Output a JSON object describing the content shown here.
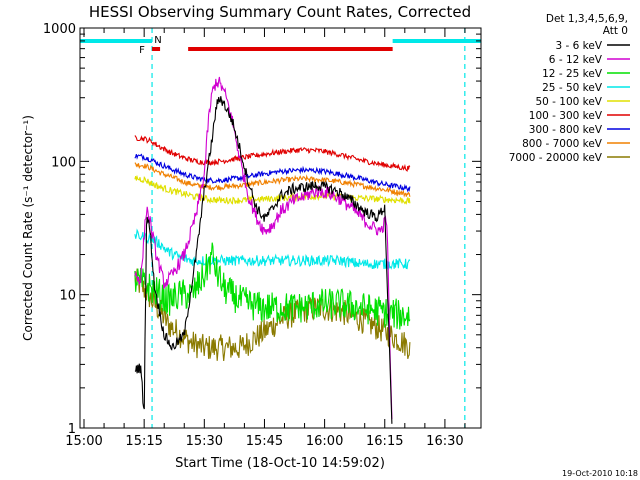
{
  "chart_data": {
    "type": "line",
    "title": "HESSI Observing Summary Count Rates, Corrected",
    "xlabel": "Start Time (18-Oct-10 14:59:02)",
    "ylabel": "Corrected Count Rate (s⁻¹ detector⁻¹)",
    "yscale": "log",
    "ylim": [
      1,
      1000
    ],
    "xlim": [
      "14:59:02",
      "16:39"
    ],
    "xticks": [
      "15:00",
      "15:15",
      "15:30",
      "15:45",
      "16:00",
      "16:15",
      "16:30"
    ],
    "xtick_minutes": [
      1,
      16,
      31,
      46,
      61,
      76,
      91
    ],
    "yticks": [
      "1",
      "10",
      "100",
      "1000"
    ],
    "yticks_values": [
      1,
      10,
      100,
      1000
    ],
    "legend_header": [
      "Det 1,3,4,5,6,9,",
      "Att 0"
    ],
    "legend_position": "right",
    "footer": "19-Oct-2010 10:18",
    "flags": {
      "daylight_segments": [
        [
          "14:59:02",
          "15:17"
        ],
        [
          "16:17",
          "16:39"
        ]
      ],
      "saa_flag": {
        "label": "N",
        "time": "15:17"
      },
      "flare_flag": {
        "label": "F",
        "time_range": [
          "15:17",
          "15:19"
        ]
      },
      "flare_bar_range": [
        "15:26",
        "16:17"
      ],
      "night_lines": [
        "15:17",
        "16:35"
      ]
    },
    "series": [
      {
        "name": "3 - 6 keV",
        "color": "#000000",
        "t": [
          13.7,
          15.2,
          16.0,
          16.6,
          17.5,
          18.5,
          20.0,
          21.0,
          23.0,
          26.0,
          29.0,
          31.0,
          33.0,
          34.0,
          35.0,
          36.5,
          38.0,
          40.0,
          42.0,
          44.0,
          46.0,
          48.0,
          50.0,
          53.0,
          56.0,
          59.0,
          62.0,
          65.0,
          68.0,
          71.0,
          74.0,
          76.0,
          77.8
        ],
        "y": [
          2.8,
          2.8,
          1.2,
          40,
          30,
          12,
          7,
          5,
          4,
          5,
          20,
          60,
          150,
          260,
          300,
          250,
          200,
          120,
          70,
          45,
          37,
          44,
          55,
          62,
          64,
          66,
          63,
          58,
          50,
          42,
          38,
          45,
          1
        ]
      },
      {
        "name": "6 - 12 keV",
        "color": "#d000d0",
        "t": [
          13.7,
          15.2,
          16.1,
          16.6,
          17.5,
          19.0,
          21.0,
          23.0,
          26.0,
          29.0,
          31.0,
          32.0,
          33.0,
          34.0,
          35.0,
          36.5,
          38.0,
          40.0,
          42.0,
          44.0,
          46.0,
          48.0,
          50.0,
          53.0,
          56.0,
          59.0,
          62.0,
          65.0,
          68.0,
          71.0,
          73.0,
          75.0,
          76.5,
          77.8
        ],
        "y": [
          14,
          13,
          30,
          45,
          35,
          20,
          12,
          14,
          20,
          40,
          80,
          200,
          330,
          400,
          380,
          300,
          200,
          100,
          55,
          38,
          30,
          33,
          42,
          50,
          55,
          60,
          58,
          52,
          44,
          36,
          32,
          30,
          38,
          1
        ]
      },
      {
        "name": "12 - 25 keV",
        "color": "#00e000",
        "t": [
          13.7,
          16.0,
          18.0,
          20.0,
          22.0,
          25.0,
          28.0,
          31.0,
          33.0,
          34.0,
          36.0,
          40.0,
          45.0,
          50.0,
          55.0,
          60.0,
          65.0,
          70.0,
          75.0,
          80.0,
          82.4
        ],
        "y": [
          13,
          12,
          11,
          10,
          9,
          10,
          10,
          14,
          20,
          15,
          11,
          9,
          8,
          8,
          8,
          8.5,
          8.5,
          8,
          7.5,
          7,
          7
        ]
      },
      {
        "name": "25 - 50 keV",
        "color": "#00e8e8",
        "t": [
          13.7,
          16.0,
          18.0,
          20.0,
          22.0,
          25.0,
          28.0,
          31.0,
          34.0,
          37.0,
          40.0,
          45.0,
          50.0,
          55.0,
          60.0,
          65.0,
          70.0,
          75.0,
          80.0,
          82.4
        ],
        "y": [
          28,
          27,
          26,
          24,
          21,
          19,
          18,
          18,
          18,
          18,
          18,
          18,
          18,
          18,
          18,
          18,
          17,
          17,
          17,
          17
        ]
      },
      {
        "name": "50 - 100 keV",
        "color": "#e0e000",
        "t": [
          13.7,
          16.0,
          18.0,
          20.0,
          23.0,
          26.0,
          29.0,
          32.0,
          35.0,
          40.0,
          45.0,
          50.0,
          55.0,
          60.0,
          65.0,
          70.0,
          75.0,
          80.0,
          82.4
        ],
        "y": [
          75,
          73,
          68,
          64,
          60,
          57,
          54,
          52,
          51,
          51,
          52,
          53,
          54,
          55,
          54,
          53,
          52,
          51,
          50
        ]
      },
      {
        "name": "100 - 300 keV",
        "color": "#e00000",
        "t": [
          13.7,
          16.0,
          18.0,
          20.0,
          23.0,
          26.0,
          29.0,
          32.0,
          35.0,
          40.0,
          45.0,
          50.0,
          55.0,
          60.0,
          65.0,
          70.0,
          75.0,
          80.0,
          82.4
        ],
        "y": [
          150,
          148,
          140,
          128,
          115,
          106,
          100,
          98,
          100,
          106,
          112,
          118,
          122,
          120,
          112,
          102,
          95,
          90,
          88
        ]
      },
      {
        "name": "300 - 800 keV",
        "color": "#0000e0",
        "t": [
          13.7,
          16.0,
          18.0,
          20.0,
          23.0,
          26.0,
          29.0,
          32.0,
          35.0,
          40.0,
          45.0,
          50.0,
          55.0,
          60.0,
          65.0,
          70.0,
          75.0,
          80.0,
          82.4
        ],
        "y": [
          110,
          108,
          102,
          95,
          87,
          80,
          75,
          72,
          72,
          75,
          80,
          84,
          86,
          85,
          80,
          74,
          68,
          64,
          62
        ]
      },
      {
        "name": "800 - 7000 keV",
        "color": "#f08000",
        "t": [
          13.7,
          16.0,
          18.0,
          20.0,
          23.0,
          26.0,
          29.0,
          32.0,
          35.0,
          40.0,
          45.0,
          50.0,
          55.0,
          60.0,
          65.0,
          70.0,
          75.0,
          80.0,
          82.4
        ],
        "y": [
          95,
          93,
          88,
          82,
          76,
          70,
          66,
          64,
          64,
          66,
          69,
          72,
          74,
          73,
          70,
          66,
          62,
          58,
          56
        ]
      },
      {
        "name": "7000 - 20000 keV",
        "color": "#8a7a00",
        "t": [
          13.7,
          16.0,
          18.0,
          20.0,
          22.0,
          25.0,
          28.0,
          31.0,
          34.0,
          37.0,
          40.0,
          45.0,
          50.0,
          55.0,
          60.0,
          65.0,
          70.0,
          75.0,
          80.0,
          82.4
        ],
        "y": [
          13,
          11,
          9,
          7.5,
          6,
          5,
          4.3,
          4,
          4,
          4,
          4,
          5,
          6.5,
          7.5,
          8,
          7.5,
          6.5,
          5.5,
          4.5,
          4
        ]
      }
    ]
  }
}
